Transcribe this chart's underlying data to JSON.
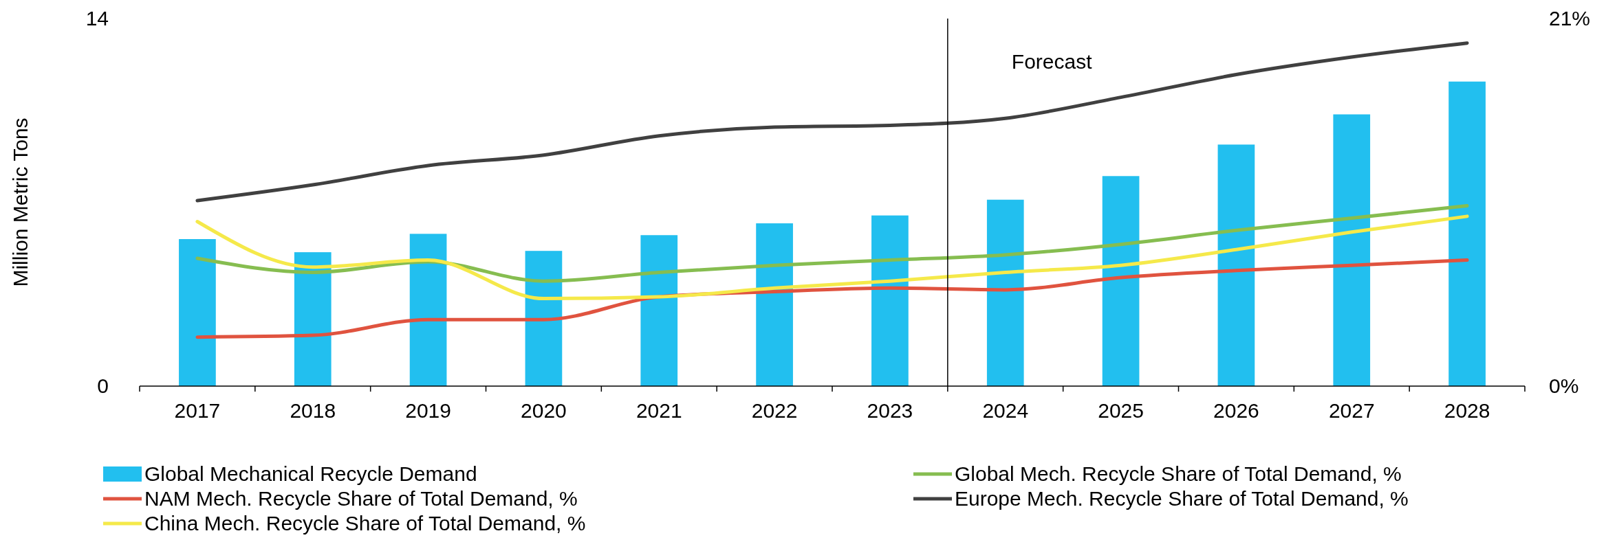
{
  "chart_data": {
    "type": "bar",
    "ylabel": "Million Metric Tons",
    "categories": [
      "2017",
      "2018",
      "2019",
      "2020",
      "2021",
      "2022",
      "2023",
      "2024",
      "2025",
      "2026",
      "2027",
      "2028"
    ],
    "ylim": [
      0,
      14
    ],
    "yticks": [
      0,
      14
    ],
    "y2lim": [
      0,
      21
    ],
    "y2ticks": [
      {
        "value": 0,
        "label": "0%"
      },
      {
        "value": 21,
        "label": "21%"
      }
    ],
    "series": [
      {
        "name": "Global Mechanical Recycle Demand",
        "color": "#22bfef",
        "values": [
          5.6,
          5.1,
          5.8,
          5.15,
          5.75,
          6.2,
          6.5,
          7.1,
          8.0,
          9.2,
          10.35,
          11.6
        ]
      },
      {
        "name": "Global Mech. Recycle Share of Total Demand, %",
        "type": "line",
        "axis": "y2",
        "color": "#86bd50",
        "values": [
          7.3,
          6.5,
          7.1,
          6.0,
          6.5,
          6.9,
          7.2,
          7.5,
          8.1,
          8.9,
          9.6,
          10.3
        ]
      },
      {
        "name": "NAM Mech. Recycle Share of Total Demand, %",
        "type": "line",
        "axis": "y2",
        "color": "#e0533f",
        "values": [
          2.8,
          2.9,
          3.8,
          3.8,
          5.1,
          5.4,
          5.6,
          5.5,
          6.2,
          6.6,
          6.9,
          7.2
        ]
      },
      {
        "name": "Europe Mech. Recycle Share of Total Demand, %",
        "type": "line",
        "axis": "y2",
        "color": "#404040",
        "values": [
          10.6,
          11.5,
          12.6,
          13.2,
          14.3,
          14.8,
          14.9,
          15.3,
          16.5,
          17.8,
          18.8,
          19.6
        ]
      },
      {
        "name": "China Mech. Recycle Share of Total Demand, %",
        "type": "line",
        "axis": "y2",
        "color": "#f5e94a",
        "values": [
          9.4,
          6.8,
          7.2,
          5.0,
          5.1,
          5.6,
          6.0,
          6.5,
          6.9,
          7.8,
          8.8,
          9.7
        ]
      }
    ],
    "annotations": [
      "Forecast"
    ],
    "legend": "bottom",
    "marker": "none",
    "line_style": "solid",
    "grid": false
  }
}
